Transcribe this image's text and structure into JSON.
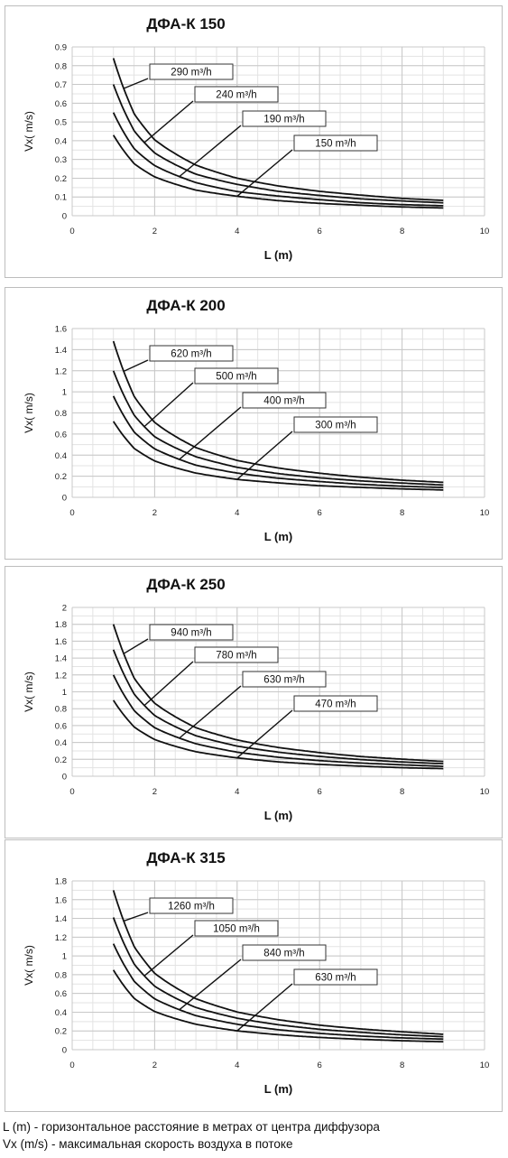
{
  "chart_data": [
    {
      "type": "line",
      "title": "ДФА-К 150",
      "xlabel": "L (m)",
      "ylabel": "Vx( m/s)",
      "xlim": [
        0,
        10
      ],
      "ylim": [
        0,
        0.9
      ],
      "xticks": [
        "0",
        "2",
        "4",
        "6",
        "8",
        "10"
      ],
      "yticks": [
        "0",
        "0.1",
        "0.2",
        "0.3",
        "0.4",
        "0.5",
        "0.6",
        "0.7",
        "0.8",
        "0.9"
      ],
      "grid": true,
      "x": [
        1,
        1.5,
        2,
        3,
        4,
        5,
        6,
        7,
        8,
        9
      ],
      "series": [
        {
          "name": "290 m³/h",
          "values": [
            0.84,
            0.53,
            0.39,
            0.26,
            0.19,
            0.15,
            0.12,
            0.1,
            0.08,
            0.07
          ]
        },
        {
          "name": "240 m³/h",
          "values": [
            0.7,
            0.44,
            0.32,
            0.21,
            0.16,
            0.12,
            0.1,
            0.08,
            0.07,
            0.06
          ]
        },
        {
          "name": "190 m³/h",
          "values": [
            0.55,
            0.35,
            0.26,
            0.17,
            0.12,
            0.1,
            0.08,
            0.06,
            0.05,
            0.045
          ]
        },
        {
          "name": "150 m³/h",
          "values": [
            0.43,
            0.27,
            0.2,
            0.13,
            0.1,
            0.075,
            0.06,
            0.05,
            0.04,
            0.035
          ]
        }
      ]
    },
    {
      "type": "line",
      "title": "ДФА-К 200",
      "xlabel": "L (m)",
      "ylabel": "Vx( m/s)",
      "xlim": [
        0,
        10
      ],
      "ylim": [
        0,
        1.6
      ],
      "xticks": [
        "0",
        "2",
        "4",
        "6",
        "8",
        "10"
      ],
      "yticks": [
        "0",
        "0.2",
        "0.4",
        "0.6",
        "0.8",
        "1",
        "1.2",
        "1.4",
        "1.6"
      ],
      "grid": true,
      "x": [
        1,
        1.5,
        2,
        3,
        4,
        5,
        6,
        7,
        8,
        9
      ],
      "series": [
        {
          "name": "620 m³/h",
          "values": [
            1.48,
            0.93,
            0.68,
            0.45,
            0.33,
            0.26,
            0.21,
            0.17,
            0.14,
            0.12
          ]
        },
        {
          "name": "500 m³/h",
          "values": [
            1.2,
            0.76,
            0.55,
            0.37,
            0.27,
            0.21,
            0.17,
            0.14,
            0.12,
            0.1
          ]
        },
        {
          "name": "400 m³/h",
          "values": [
            0.96,
            0.6,
            0.44,
            0.29,
            0.22,
            0.17,
            0.14,
            0.11,
            0.09,
            0.08
          ]
        },
        {
          "name": "300 m³/h",
          "values": [
            0.72,
            0.45,
            0.33,
            0.22,
            0.16,
            0.13,
            0.1,
            0.085,
            0.07,
            0.06
          ]
        }
      ]
    },
    {
      "type": "line",
      "title": "ДФА-К 250",
      "xlabel": "L (m)",
      "ylabel": "Vx( m/s)",
      "xlim": [
        0,
        10
      ],
      "ylim": [
        0,
        2
      ],
      "xticks": [
        "0",
        "2",
        "4",
        "6",
        "8",
        "10"
      ],
      "yticks": [
        "0",
        "0.2",
        "0.4",
        "0.6",
        "0.8",
        "1",
        "1.2",
        "1.4",
        "1.6",
        "1.8",
        "2"
      ],
      "grid": true,
      "x": [
        1,
        1.5,
        2,
        3,
        4,
        5,
        6,
        7,
        8,
        9
      ],
      "series": [
        {
          "name": "940 m³/h",
          "values": [
            1.8,
            1.13,
            0.83,
            0.55,
            0.41,
            0.32,
            0.26,
            0.21,
            0.18,
            0.15
          ]
        },
        {
          "name": "780 m³/h",
          "values": [
            1.5,
            0.95,
            0.69,
            0.46,
            0.34,
            0.27,
            0.22,
            0.18,
            0.15,
            0.13
          ]
        },
        {
          "name": "630 m³/h",
          "values": [
            1.2,
            0.76,
            0.55,
            0.37,
            0.27,
            0.21,
            0.17,
            0.14,
            0.12,
            0.1
          ]
        },
        {
          "name": "470 m³/h",
          "values": [
            0.9,
            0.57,
            0.42,
            0.28,
            0.21,
            0.16,
            0.13,
            0.11,
            0.09,
            0.08
          ]
        }
      ]
    },
    {
      "type": "line",
      "title": "ДФА-К 315",
      "xlabel": "L (m)",
      "ylabel": "Vx( m/s)",
      "xlim": [
        0,
        10
      ],
      "ylim": [
        0,
        1.8
      ],
      "xticks": [
        "0",
        "2",
        "4",
        "6",
        "8",
        "10"
      ],
      "yticks": [
        "0",
        "0.2",
        "0.4",
        "0.6",
        "0.8",
        "1",
        "1.2",
        "1.4",
        "1.6",
        "1.8"
      ],
      "grid": true,
      "x": [
        1,
        1.5,
        2,
        3,
        4,
        5,
        6,
        7,
        8,
        9
      ],
      "series": [
        {
          "name": "1260 m³/h",
          "values": [
            1.7,
            1.07,
            0.78,
            0.52,
            0.38,
            0.3,
            0.24,
            0.2,
            0.17,
            0.14
          ]
        },
        {
          "name": "1050 m³/h",
          "values": [
            1.41,
            0.89,
            0.65,
            0.43,
            0.32,
            0.25,
            0.2,
            0.17,
            0.14,
            0.12
          ]
        },
        {
          "name": "840 m³/h",
          "values": [
            1.13,
            0.71,
            0.52,
            0.35,
            0.26,
            0.2,
            0.16,
            0.13,
            0.11,
            0.1
          ]
        },
        {
          "name": "630 m³/h",
          "values": [
            0.85,
            0.53,
            0.39,
            0.26,
            0.19,
            0.15,
            0.12,
            0.1,
            0.085,
            0.075
          ]
        }
      ]
    }
  ],
  "notes": {
    "line1": "L (m) - горизонтальное расстояние в метрах от центра диффузора",
    "line2": "Vx (m/s) - максимальная скорость воздуха в потоке"
  }
}
